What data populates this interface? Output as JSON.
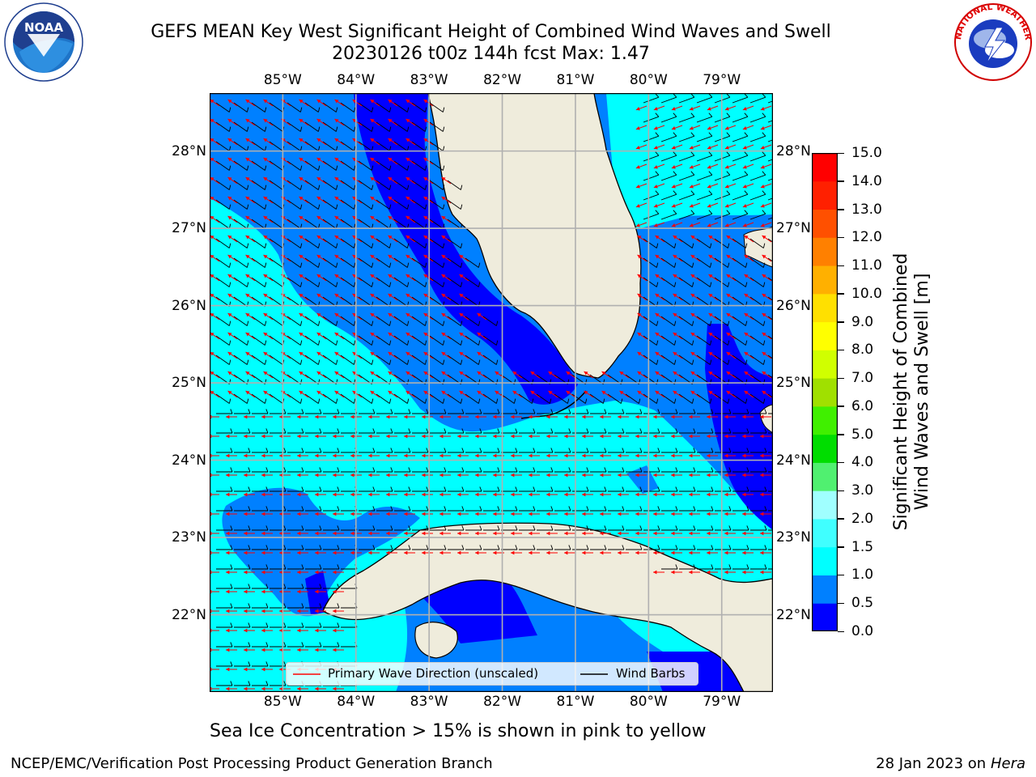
{
  "title": {
    "line1": "GEFS MEAN Key West Significant Height of Combined Wind Waves and Swell",
    "line2": "20230126 t00z 144h fcst   Max: 1.47"
  },
  "logos": {
    "left": "NOAA",
    "right": "NATIONAL WEATHER SERVICE"
  },
  "map": {
    "lon_ticks": [
      "85°W",
      "84°W",
      "83°W",
      "82°W",
      "81°W",
      "80°W",
      "79°W"
    ],
    "lat_ticks": [
      "28°N",
      "27°N",
      "26°N",
      "25°N",
      "24°N",
      "23°N",
      "22°N"
    ],
    "lon_values": [
      -85,
      -84,
      -83,
      -82,
      -81,
      -80,
      -79
    ],
    "lat_values": [
      28,
      27,
      26,
      25,
      24,
      23,
      22
    ],
    "extent": {
      "lon_min": -86,
      "lon_max": -78.3,
      "lat_min": 21.0,
      "lat_max": 28.75
    },
    "land_color": "#efecdc",
    "grid_color": "#b0b0b0"
  },
  "legend": {
    "wave_direction": "Primary Wave Direction (unscaled)",
    "wind_barbs": "Wind Barbs",
    "wave_color": "#ff0000",
    "barb_color": "#000000"
  },
  "colorbar": {
    "label_line1": "Significant Height of Combined",
    "label_line2": "Wind Waves and Swell [m]",
    "ticks": [
      "0.0",
      "0.5",
      "1.0",
      "1.5",
      "2.0",
      "3.0",
      "4.0",
      "5.0",
      "6.0",
      "7.0",
      "8.0",
      "9.0",
      "10.0",
      "11.0",
      "12.0",
      "13.0",
      "14.0",
      "15.0"
    ],
    "colors": [
      "#0000ff",
      "#0080ff",
      "#00ffff",
      "#40ffff",
      "#a0ffff",
      "#50f070",
      "#00dd00",
      "#40f000",
      "#a0e000",
      "#d0ff00",
      "#ffff00",
      "#ffe000",
      "#ffb000",
      "#ff8000",
      "#ff5000",
      "#ff2000",
      "#ff0000"
    ]
  },
  "note": "Sea Ice Concentration > 15% is shown in pink to yellow",
  "footer": {
    "left": "NCEP/EMC/Verification Post Processing Product Generation Branch",
    "right_prefix": "28 Jan 2023 on ",
    "right_machine": "Hera"
  }
}
